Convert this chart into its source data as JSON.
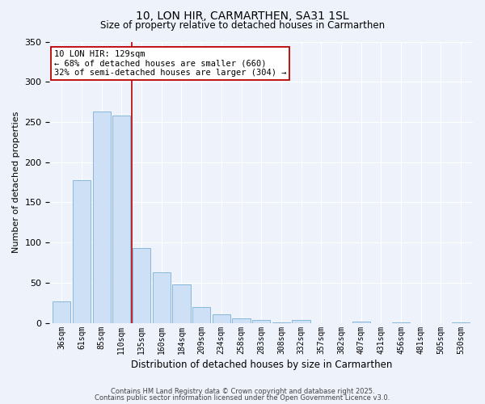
{
  "title": "10, LON HIR, CARMARTHEN, SA31 1SL",
  "subtitle": "Size of property relative to detached houses in Carmarthen",
  "xlabel": "Distribution of detached houses by size in Carmarthen",
  "ylabel": "Number of detached properties",
  "bar_labels": [
    "36sqm",
    "61sqm",
    "85sqm",
    "110sqm",
    "135sqm",
    "160sqm",
    "184sqm",
    "209sqm",
    "234sqm",
    "258sqm",
    "283sqm",
    "308sqm",
    "332sqm",
    "357sqm",
    "382sqm",
    "407sqm",
    "431sqm",
    "456sqm",
    "481sqm",
    "505sqm",
    "530sqm"
  ],
  "bar_values": [
    27,
    178,
    263,
    258,
    93,
    63,
    48,
    20,
    11,
    6,
    4,
    1,
    4,
    0,
    0,
    2,
    0,
    1,
    0,
    0,
    1
  ],
  "bar_color": "#cde0f5",
  "bar_edge_color": "#7ab0d8",
  "ylim": [
    0,
    350
  ],
  "yticks": [
    0,
    50,
    100,
    150,
    200,
    250,
    300,
    350
  ],
  "vline_pos": 3.5,
  "vline_color": "#bb0000",
  "annotation_title": "10 LON HIR: 129sqm",
  "annotation_line1": "← 68% of detached houses are smaller (660)",
  "annotation_line2": "32% of semi-detached houses are larger (304) →",
  "footnote1": "Contains HM Land Registry data © Crown copyright and database right 2025.",
  "footnote2": "Contains public sector information licensed under the Open Government Licence v3.0.",
  "bg_color": "#eef2fb",
  "plot_bg_color": "#eef2fb",
  "grid_color": "#ffffff",
  "title_fontsize": 10,
  "subtitle_fontsize": 8.5,
  "ylabel_fontsize": 8,
  "xlabel_fontsize": 8.5,
  "annotation_box_edge": "#bb0000",
  "annotation_fontsize": 7.5,
  "tick_fontsize": 7,
  "ytick_fontsize": 8
}
